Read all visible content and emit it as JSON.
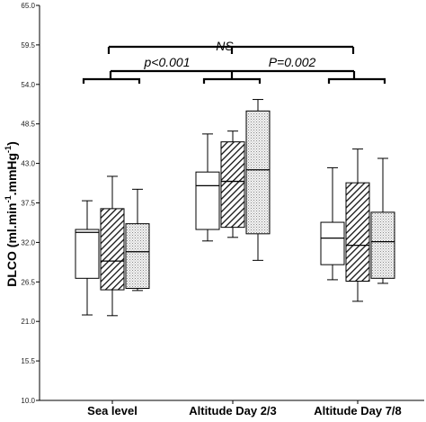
{
  "chart_data": {
    "type": "boxplot",
    "ylabel": "DLCO (ml.min",
    "ylabel_sup1": "-1",
    "ylabel_mid": ".mmHg",
    "ylabel_sup2": "-1",
    "ylabel_end": ")",
    "ylim": [
      10.0,
      65.0
    ],
    "yticks": [
      "10.0",
      "15.5",
      "21.0",
      "26.5",
      "32.0",
      "37.5",
      "43.0",
      "48.5",
      "54.0",
      "59.5",
      "65.0"
    ],
    "categories": [
      "Sea level",
      "Altitude Day 2/3",
      "Altitude Day 7/8"
    ],
    "series": [
      {
        "fill": "white",
        "boxes": [
          {
            "min": 21.9,
            "q1": 27.0,
            "median": 33.4,
            "q3": 33.8,
            "max": 37.8
          },
          {
            "min": 32.2,
            "q1": 33.8,
            "median": 39.9,
            "q3": 41.8,
            "max": 47.1
          },
          {
            "min": 26.8,
            "q1": 28.9,
            "median": 32.6,
            "q3": 34.8,
            "max": 42.4
          }
        ]
      },
      {
        "fill": "hatched",
        "boxes": [
          {
            "min": 21.8,
            "q1": 25.4,
            "median": 29.4,
            "q3": 36.7,
            "max": 41.2
          },
          {
            "min": 32.7,
            "q1": 34.1,
            "median": 40.5,
            "q3": 46.0,
            "max": 47.5
          },
          {
            "min": 23.8,
            "q1": 26.6,
            "median": 31.6,
            "q3": 40.3,
            "max": 45.0
          }
        ]
      },
      {
        "fill": "dotted",
        "boxes": [
          {
            "min": 25.3,
            "q1": 25.6,
            "median": 30.7,
            "q3": 34.6,
            "max": 39.4
          },
          {
            "min": 29.5,
            "q1": 33.2,
            "median": 42.1,
            "q3": 50.3,
            "max": 51.9
          },
          {
            "min": 26.3,
            "q1": 27.0,
            "median": 32.1,
            "q3": 36.2,
            "max": 43.7
          }
        ]
      }
    ],
    "annotations": {
      "ns": "NS",
      "p1": "p<0.001",
      "p2": "P=0.002"
    },
    "grid": false
  }
}
